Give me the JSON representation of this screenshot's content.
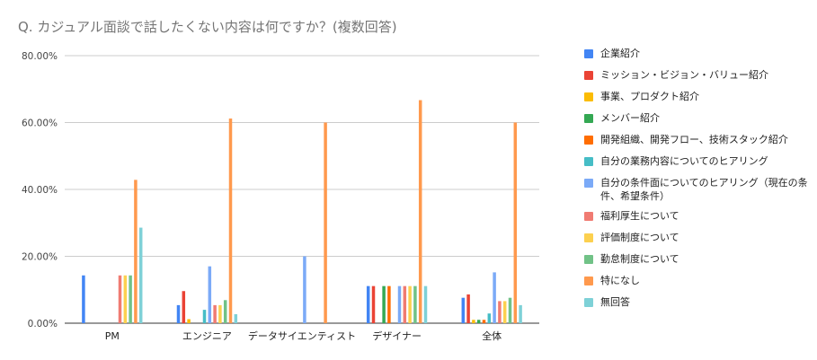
{
  "chart_data": {
    "type": "bar",
    "title": "Q. カジュアル面談で話したくない内容は何ですか？(複数回答)",
    "xlabel": "",
    "ylabel": "",
    "ylim": [
      0,
      80
    ],
    "yticks": [
      "0.00%",
      "20.00%",
      "40.00%",
      "60.00%",
      "80.00%"
    ],
    "grid": true,
    "legend_position": "right",
    "categories": [
      "PM",
      "エンジニア",
      "データサイエンティスト",
      "デザイナー",
      "全体"
    ],
    "series": [
      {
        "name": "企業紹介",
        "color": "#4285f4",
        "values": [
          14.29,
          5.4,
          0,
          11.1,
          7.6
        ]
      },
      {
        "name": "ミッション・ビジョン・バリュー紹介",
        "color": "#ea4335",
        "values": [
          0,
          9.6,
          0,
          11.1,
          8.6
        ]
      },
      {
        "name": "事業、プロダクト紹介",
        "color": "#fbbc04",
        "values": [
          0,
          1.2,
          0,
          0,
          1.0
        ]
      },
      {
        "name": "メンバー紹介",
        "color": "#34a853",
        "values": [
          0,
          0,
          0,
          11.1,
          1.0
        ]
      },
      {
        "name": "開発組織、開発フロー、技術スタック紹介",
        "color": "#ff6d01",
        "values": [
          0,
          0,
          0,
          11.1,
          1.0
        ]
      },
      {
        "name": "自分の業務内容についてのヒアリング",
        "color": "#46bdc6",
        "values": [
          0,
          4.0,
          0,
          0,
          2.9
        ]
      },
      {
        "name": "自分の条件面についてのヒアリング（現在の条件、希望条件）",
        "color": "#7baaf7",
        "values": [
          0,
          17.0,
          20.0,
          11.1,
          15.2
        ]
      },
      {
        "name": "福利厚生について",
        "color": "#f07b72",
        "values": [
          14.29,
          5.4,
          0,
          11.1,
          6.6
        ]
      },
      {
        "name": "評価制度について",
        "color": "#fcd04f",
        "values": [
          14.29,
          5.4,
          0,
          11.1,
          6.6
        ]
      },
      {
        "name": "勤怠制度について",
        "color": "#71c287",
        "values": [
          14.29,
          6.9,
          0,
          11.1,
          7.6
        ]
      },
      {
        "name": "特になし",
        "color": "#ff994d",
        "values": [
          42.86,
          61.2,
          60.0,
          66.7,
          60.0
        ]
      },
      {
        "name": "無回答",
        "color": "#7ed1d7",
        "values": [
          28.57,
          2.7,
          0,
          11.1,
          5.4
        ]
      }
    ]
  }
}
